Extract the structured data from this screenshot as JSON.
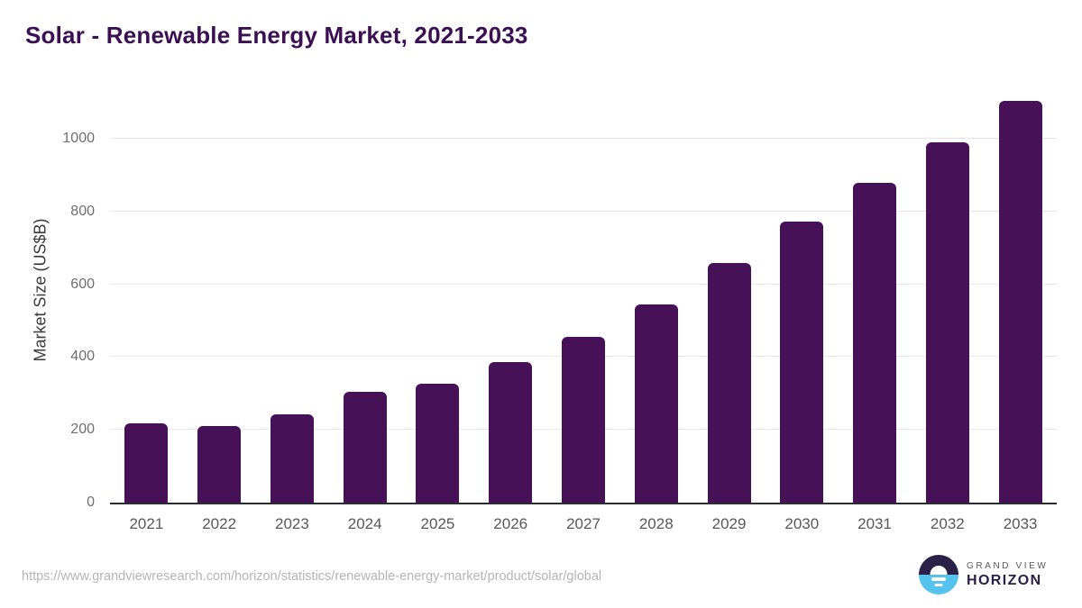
{
  "header": {
    "title": "Solar - Renewable Energy Market, 2021-2033"
  },
  "chart_data": {
    "type": "bar",
    "title": "Solar - Renewable Energy Market, 2021-2033",
    "categories": [
      "2021",
      "2022",
      "2023",
      "2024",
      "2025",
      "2026",
      "2027",
      "2028",
      "2029",
      "2030",
      "2031",
      "2032",
      "2033"
    ],
    "values": [
      219,
      210,
      243,
      305,
      326,
      387,
      456,
      544,
      659,
      772,
      878,
      990,
      1103
    ],
    "xlabel": "",
    "ylabel": "Market Size (US$B)",
    "yticks": [
      0,
      200,
      400,
      600,
      800,
      1000
    ],
    "ylim": [
      0,
      1150
    ],
    "grid": "horizontal",
    "legend": "none",
    "bar_color": "#471158"
  },
  "footer": {
    "source_url": "https://www.grandviewresearch.com/horizon/statistics/renewable-energy-market/product/solar/global",
    "logo": {
      "top_text": "GRAND VIEW",
      "bottom_text": "HORIZON",
      "icon": "sun-over-horizon-circle-icon"
    }
  },
  "colors": {
    "title": "#3b1053",
    "bar": "#471158",
    "gridline": "#e7e7e9",
    "axis_line": "#2b2b33",
    "y_tick_text": "#6e6e6e",
    "x_tick_text": "#58585c",
    "source_text": "#b5b5b5",
    "logo_navy": "#2b2148",
    "logo_blue": "#55c3ee"
  }
}
